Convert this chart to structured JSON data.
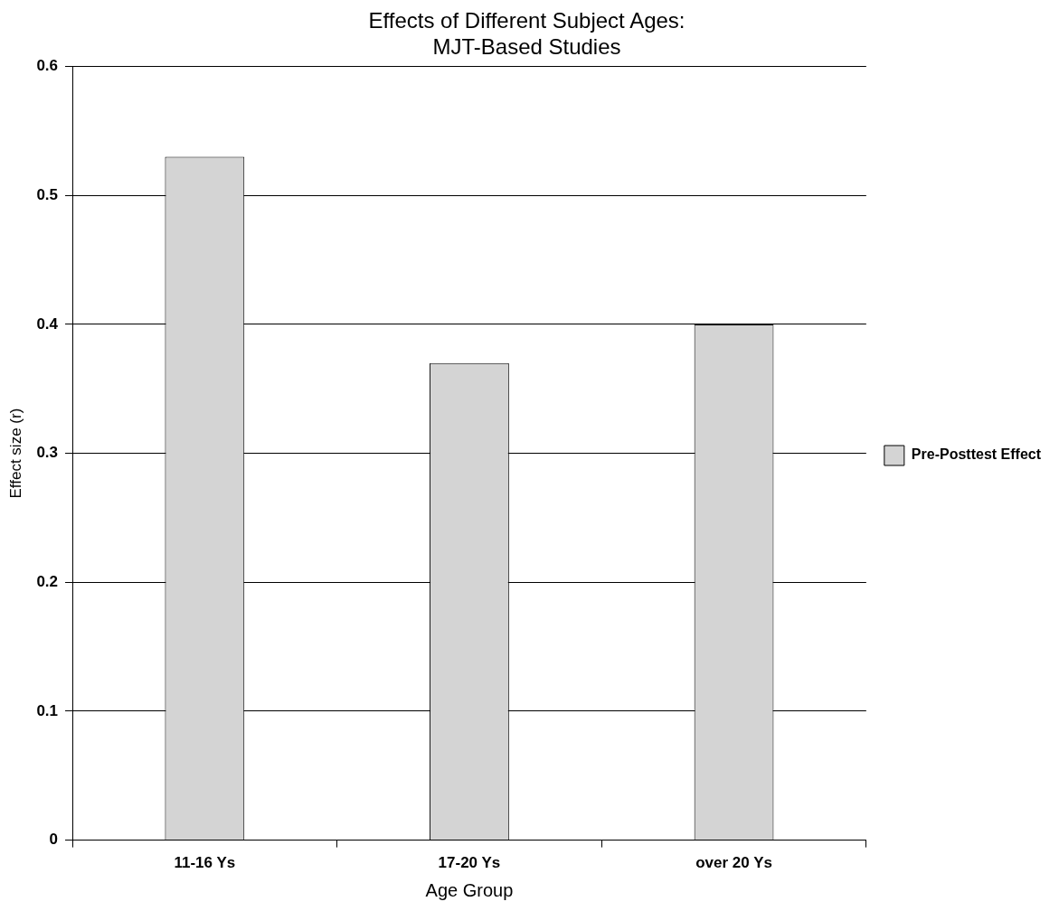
{
  "chart_data": {
    "type": "bar",
    "title": "Effects of Different Subject Ages:\nMJT-Based Studies",
    "xlabel": "Age Group",
    "ylabel": "Effect size (r)",
    "categories": [
      "11-16 Ys",
      "17-20 Ys",
      "over 20 Ys"
    ],
    "series": [
      {
        "name": "Pre-Posttest Effect",
        "color": "#d4d4d4",
        "values": [
          0.53,
          0.37,
          0.4
        ]
      }
    ],
    "ylim": [
      0,
      0.6
    ],
    "yticks": [
      0,
      0.1,
      0.2,
      0.3,
      0.4,
      0.5,
      0.6
    ],
    "grid": "y",
    "legend": "right"
  }
}
